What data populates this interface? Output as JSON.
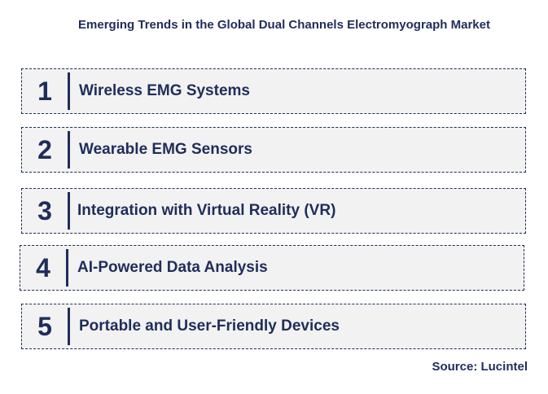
{
  "title": "Emerging Trends in the Global Dual Channels Electromyograph Market",
  "trends": [
    {
      "number": "1",
      "label": "Wireless EMG Systems"
    },
    {
      "number": "2",
      "label": "Wearable EMG Sensors"
    },
    {
      "number": "3",
      "label": "Integration with Virtual Reality (VR)"
    },
    {
      "number": "4",
      "label": "AI-Powered Data Analysis"
    },
    {
      "number": "5",
      "label": "Portable and User-Friendly Devices"
    }
  ],
  "source": "Source: Lucintel",
  "colors": {
    "text": "#1f2d5a",
    "box_background": "#f2f2f2"
  }
}
